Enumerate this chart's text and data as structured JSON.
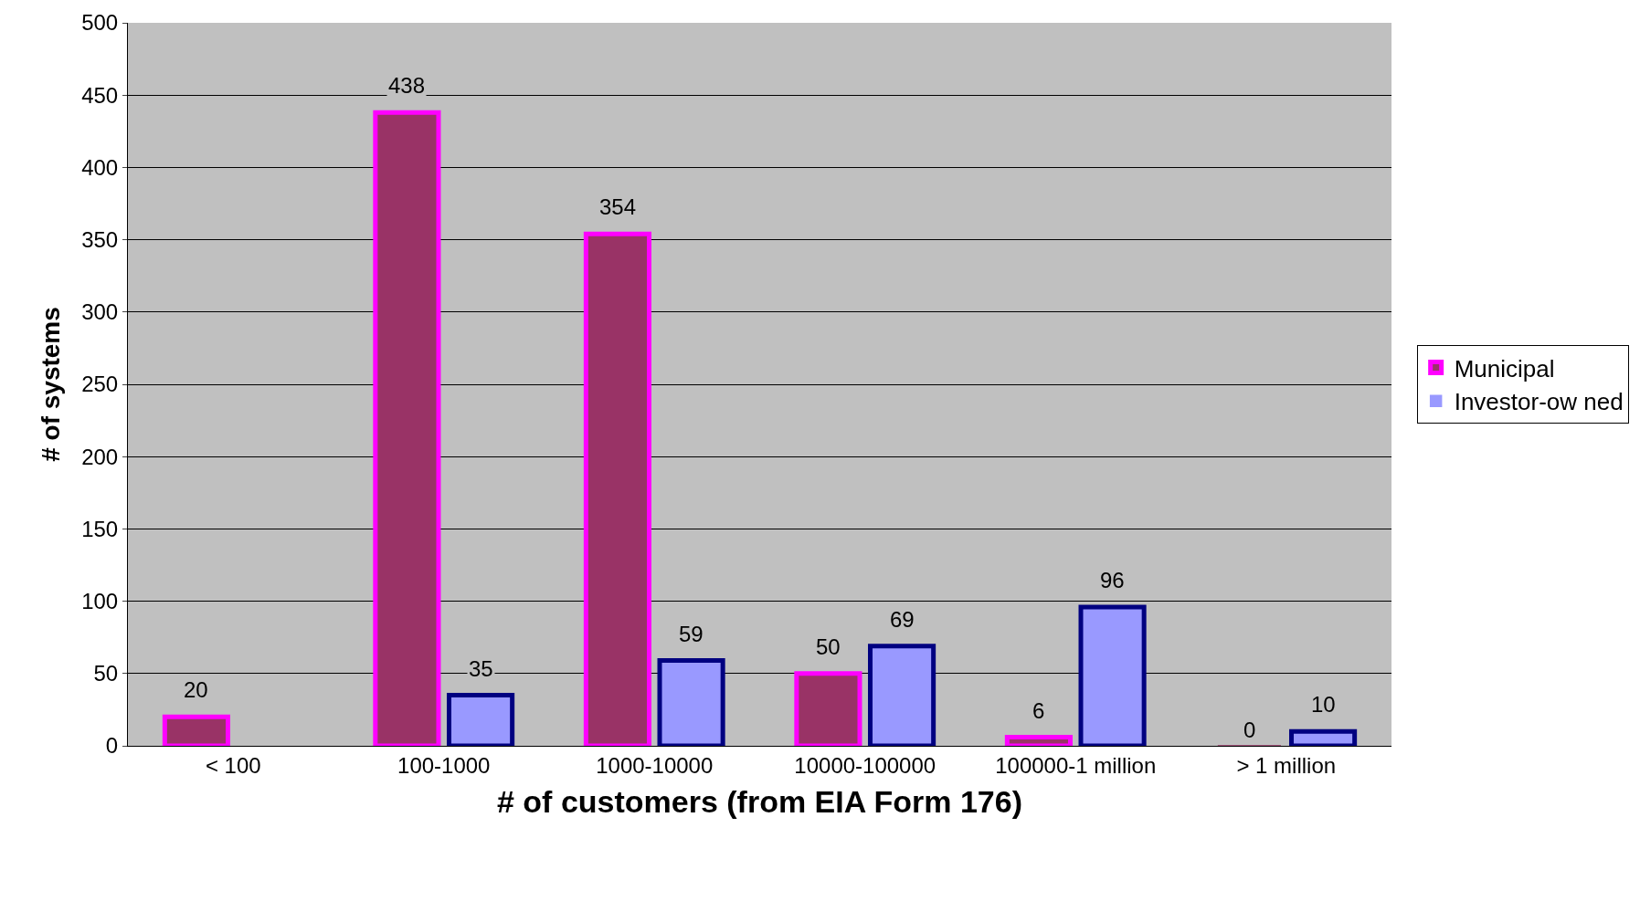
{
  "chart_data": {
    "type": "bar",
    "xlabel": "# of customers (from EIA Form 176)",
    "ylabel": "# of systems",
    "categories": [
      "< 100",
      "100-1000",
      "1000-10000",
      "10000-100000",
      "100000-1 million",
      "> 1 million"
    ],
    "series": [
      {
        "name": "Municipal",
        "color": "#993366",
        "values": [
          20,
          438,
          354,
          50,
          6,
          0
        ]
      },
      {
        "name": "Investor-ow ned",
        "color": "#9999ff",
        "values": [
          null,
          35,
          59,
          69,
          96,
          10
        ]
      }
    ],
    "ylim": [
      0,
      500
    ],
    "yticks": [
      0,
      50,
      100,
      150,
      200,
      250,
      300,
      350,
      400,
      450,
      500
    ],
    "grid": "y",
    "legend": "right",
    "data_labels": true
  }
}
